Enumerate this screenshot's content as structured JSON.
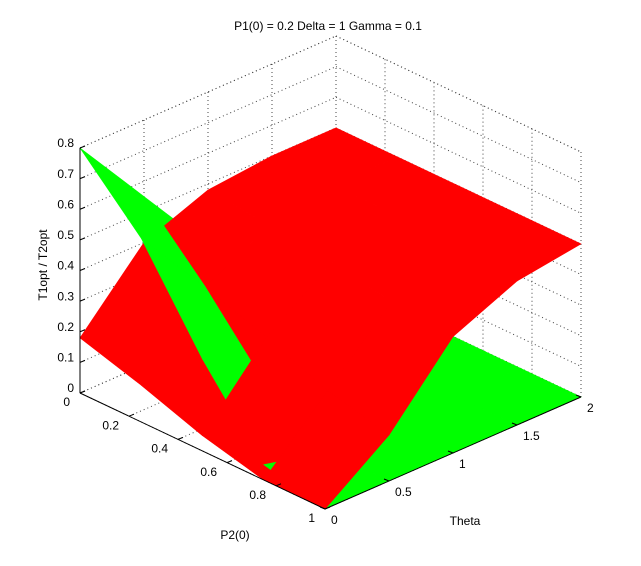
{
  "chart_data": {
    "type": "surface3d",
    "title": "P1(0) = 0.2 Delta = 1 Gamma = 0.1",
    "x_label": "P2(0)",
    "y_label": "Theta",
    "z_label": "T1opt / T2opt",
    "x": [
      0,
      0.25,
      0.5,
      0.75,
      1
    ],
    "y": [
      0,
      0.5,
      1,
      1.5,
      2
    ],
    "xlim": [
      0,
      1
    ],
    "ylim": [
      0,
      2
    ],
    "zlim": [
      0,
      0.8
    ],
    "xticks": [
      0,
      0.2,
      0.4,
      0.6,
      0.8,
      1
    ],
    "yticks": [
      0,
      0.5,
      1,
      1.5,
      2
    ],
    "zticks": [
      0,
      0.1,
      0.2,
      0.3,
      0.4,
      0.5,
      0.6,
      0.7,
      0.8
    ],
    "grid": true,
    "series": [
      {
        "color": "#ff0000",
        "z": [
          [
            0.18,
            0.12,
            0.05,
            0,
            0
          ],
          [
            0.4,
            0.35,
            0.28,
            0.2,
            0.15
          ],
          [
            0.48,
            0.46,
            0.43,
            0.4,
            0.38
          ],
          [
            0.5,
            0.5,
            0.5,
            0.48,
            0.47
          ],
          [
            0.5,
            0.5,
            0.5,
            0.5,
            0.5
          ]
        ]
      },
      {
        "color": "#00ff00",
        "z": [
          [
            0.8,
            0.6,
            0.3,
            0.05,
            0
          ],
          [
            0.55,
            0.35,
            0.12,
            0,
            0
          ],
          [
            0.3,
            0.12,
            0.02,
            0,
            0
          ],
          [
            0.1,
            0.02,
            0,
            0,
            0
          ],
          [
            0,
            0,
            0,
            0,
            0
          ]
        ]
      }
    ]
  }
}
